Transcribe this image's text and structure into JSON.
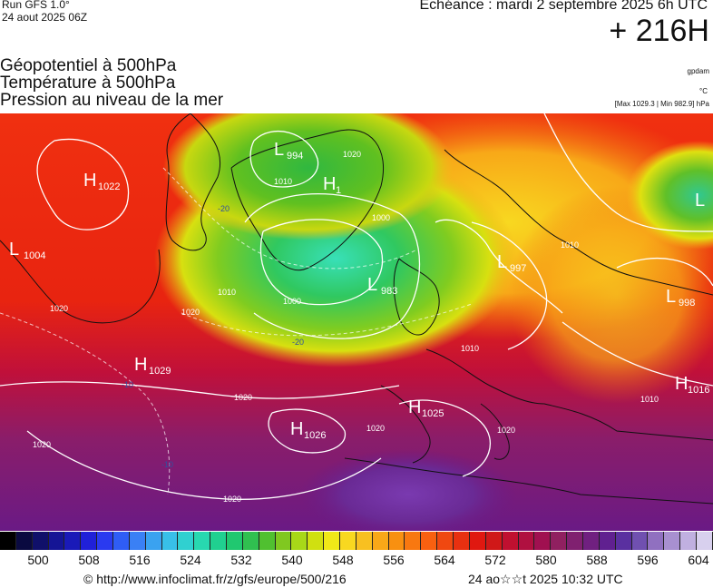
{
  "header": {
    "run_label": "Run GFS 1.0°",
    "run_date": "24 aout 2025 06Z",
    "valid_time": "Echéance : mardi 2 septembre 2025 6h UTC",
    "lead_time": "+ 216H"
  },
  "titles": {
    "line1": "Géopotentiel à 500hPa",
    "line2": "Température à 500hPa",
    "line3": "Pression au niveau de la mer"
  },
  "units": {
    "gpdam": "gpdam",
    "temp": "°C",
    "minmax": "[Max 1029.3 | Min 982.9] hPa"
  },
  "pressure_centers": [
    {
      "type": "H",
      "value": "1022"
    },
    {
      "type": "L",
      "value": "1004"
    },
    {
      "type": "L",
      "value": "994"
    },
    {
      "type": "H",
      "value": "1"
    },
    {
      "type": "L",
      "value": "983"
    },
    {
      "type": "L",
      "value": "997"
    },
    {
      "type": "L",
      "value": "998"
    },
    {
      "type": "L",
      "value": ""
    },
    {
      "type": "H",
      "value": "1029"
    },
    {
      "type": "H",
      "value": "1025"
    },
    {
      "type": "H",
      "value": "1026"
    },
    {
      "type": "H",
      "value": "1016"
    }
  ],
  "isobar_labels": [
    "1020",
    "1010",
    "1000",
    "1020",
    "1020",
    "1010",
    "1000",
    "1010",
    "1010",
    "1020",
    "1020",
    "1020",
    "1020",
    "1020",
    "1010"
  ],
  "isotherm_labels": [
    "-20",
    "-20",
    "-10",
    "-10"
  ],
  "colorbar": {
    "ticks": [
      "500",
      "508",
      "516",
      "524",
      "532",
      "540",
      "548",
      "556",
      "564",
      "572",
      "580",
      "588",
      "596",
      "604"
    ],
    "colors": [
      "#000000",
      "#0a0a40",
      "#10106a",
      "#151595",
      "#1a1ab8",
      "#2020d8",
      "#2a3af0",
      "#2f5df5",
      "#3a80f5",
      "#3aa2f0",
      "#38c0e8",
      "#30d0d0",
      "#28d8b0",
      "#20d090",
      "#20c870",
      "#30c050",
      "#50c030",
      "#80c820",
      "#a8d818",
      "#d0e010",
      "#f0e818",
      "#f8d820",
      "#f8c020",
      "#f8a818",
      "#f89010",
      "#f87810",
      "#f86010",
      "#f04810",
      "#e83010",
      "#e01810",
      "#d01818",
      "#c01030",
      "#b01040",
      "#a01050",
      "#902060",
      "#802070",
      "#702080",
      "#602090",
      "#5a30a0",
      "#7050b0",
      "#9070c0",
      "#a890d0",
      "#c0b0e0",
      "#d8d0ee"
    ]
  },
  "footer": {
    "copyright": "© http://www.infoclimat.fr/z/gfs/europe/500/216",
    "generated": "24 ao☆☆t 2025 10:32 UTC"
  }
}
